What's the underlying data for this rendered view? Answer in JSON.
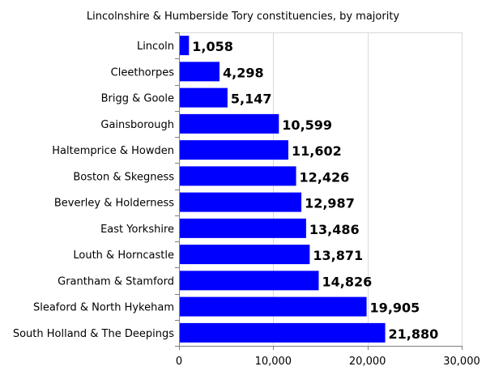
{
  "chart_data": {
    "type": "bar",
    "orientation": "horizontal",
    "title": "Lincolnshire & Humberside Tory constituencies, by majority",
    "xlabel": "",
    "ylabel": "",
    "categories": [
      "Lincoln",
      "Cleethorpes",
      "Brigg & Goole",
      "Gainsborough",
      "Haltemprice & Howden",
      "Boston & Skegness",
      "Beverley & Holderness",
      "East Yorkshire",
      "Louth & Horncastle",
      "Grantham & Stamford",
      "Sleaford & North Hykeham",
      "South Holland & The Deepings"
    ],
    "values": [
      1058,
      4298,
      5147,
      10599,
      11602,
      12426,
      12987,
      13486,
      13871,
      14826,
      19905,
      21880
    ],
    "value_labels": [
      "1,058",
      "4,298",
      "5,147",
      "10,599",
      "11,602",
      "12,426",
      "12,987",
      "13,486",
      "13,871",
      "14,826",
      "19,905",
      "21,880"
    ],
    "xlim": [
      0,
      30000
    ],
    "xticks": [
      0,
      10000,
      20000,
      30000
    ],
    "xtick_labels": [
      "0",
      "10,000",
      "20,000",
      "30,000"
    ],
    "bar_color": "#0000ff",
    "grid": true,
    "legend": "none"
  }
}
